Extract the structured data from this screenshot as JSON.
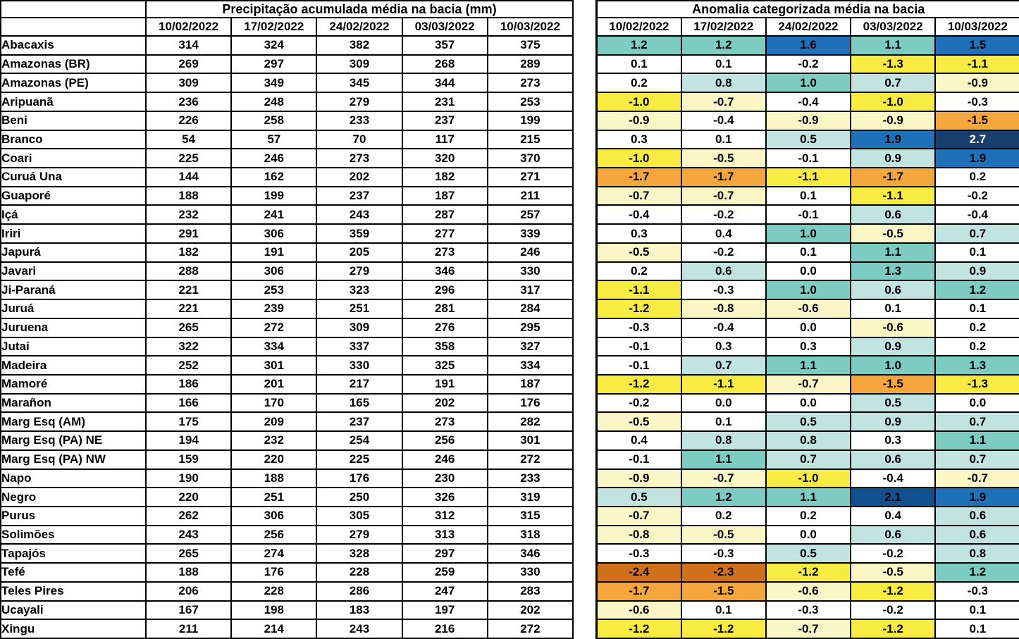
{
  "chart_data": {
    "type": "table",
    "left_table": {
      "title": "Precipitação acumulada média na bacia (mm)",
      "columns": [
        "10/02/2022",
        "17/02/2022",
        "24/02/2022",
        "03/03/2022",
        "10/03/2022"
      ]
    },
    "right_table": {
      "title": "Anomalia categorizada média na bacia",
      "columns": [
        "10/02/2022",
        "17/02/2022",
        "24/02/2022",
        "03/03/2022",
        "10/03/2022"
      ]
    },
    "rows": [
      {
        "name": "Abacaxis",
        "precip": [
          314,
          324,
          382,
          357,
          375
        ],
        "anomaly": [
          1.2,
          1.2,
          1.6,
          1.1,
          1.5
        ]
      },
      {
        "name": "Amazonas (BR)",
        "precip": [
          269,
          297,
          309,
          268,
          289
        ],
        "anomaly": [
          0.1,
          0.1,
          -0.2,
          -1.3,
          -1.1
        ]
      },
      {
        "name": "Amazonas (PE)",
        "precip": [
          309,
          349,
          345,
          344,
          273
        ],
        "anomaly": [
          0.2,
          0.8,
          1.0,
          0.7,
          -0.9
        ]
      },
      {
        "name": "Aripuanã",
        "precip": [
          236,
          248,
          279,
          231,
          253
        ],
        "anomaly": [
          -1.0,
          -0.7,
          -0.4,
          -1.0,
          -0.3
        ]
      },
      {
        "name": "Beni",
        "precip": [
          226,
          258,
          233,
          237,
          199
        ],
        "anomaly": [
          -0.9,
          -0.4,
          -0.9,
          -0.9,
          -1.5
        ]
      },
      {
        "name": "Branco",
        "precip": [
          54,
          57,
          70,
          117,
          215
        ],
        "anomaly": [
          0.3,
          0.1,
          0.5,
          1.9,
          2.7
        ]
      },
      {
        "name": "Coari",
        "precip": [
          225,
          246,
          273,
          320,
          370
        ],
        "anomaly": [
          -1.0,
          -0.5,
          -0.1,
          0.9,
          1.9
        ]
      },
      {
        "name": "Curuá Una",
        "precip": [
          144,
          162,
          202,
          182,
          271
        ],
        "anomaly": [
          -1.7,
          -1.7,
          -1.1,
          -1.7,
          0.2
        ]
      },
      {
        "name": "Guaporé",
        "precip": [
          188,
          199,
          237,
          187,
          211
        ],
        "anomaly": [
          -0.7,
          -0.7,
          0.1,
          -1.1,
          -0.2
        ]
      },
      {
        "name": "Içá",
        "precip": [
          232,
          241,
          243,
          287,
          257
        ],
        "anomaly": [
          -0.4,
          -0.2,
          -0.1,
          0.6,
          -0.4
        ]
      },
      {
        "name": "Iriri",
        "precip": [
          291,
          306,
          359,
          277,
          339
        ],
        "anomaly": [
          0.3,
          0.4,
          1.0,
          -0.5,
          0.7
        ]
      },
      {
        "name": "Japurá",
        "precip": [
          182,
          191,
          205,
          273,
          246
        ],
        "anomaly": [
          -0.5,
          -0.2,
          0.1,
          1.1,
          0.1
        ]
      },
      {
        "name": "Javari",
        "precip": [
          288,
          306,
          279,
          346,
          330
        ],
        "anomaly": [
          0.2,
          0.6,
          0.0,
          1.3,
          0.9
        ]
      },
      {
        "name": "Ji-Paraná",
        "precip": [
          221,
          253,
          323,
          296,
          317
        ],
        "anomaly": [
          -1.1,
          -0.3,
          1.0,
          0.6,
          1.2
        ]
      },
      {
        "name": "Juruá",
        "precip": [
          221,
          239,
          251,
          281,
          284
        ],
        "anomaly": [
          -1.2,
          -0.8,
          -0.6,
          0.1,
          0.1
        ]
      },
      {
        "name": "Juruena",
        "precip": [
          265,
          272,
          309,
          276,
          295
        ],
        "anomaly": [
          -0.3,
          -0.4,
          0.0,
          -0.6,
          0.2
        ]
      },
      {
        "name": "Jutaí",
        "precip": [
          322,
          334,
          337,
          358,
          327
        ],
        "anomaly": [
          -0.1,
          0.3,
          0.3,
          0.9,
          0.2
        ]
      },
      {
        "name": "Madeira",
        "precip": [
          252,
          301,
          330,
          325,
          334
        ],
        "anomaly": [
          -0.1,
          0.7,
          1.1,
          1.0,
          1.3
        ]
      },
      {
        "name": "Mamoré",
        "precip": [
          186,
          201,
          217,
          191,
          187
        ],
        "anomaly": [
          -1.2,
          -1.1,
          -0.7,
          -1.5,
          -1.3
        ]
      },
      {
        "name": "Marañon",
        "precip": [
          166,
          170,
          165,
          202,
          176
        ],
        "anomaly": [
          -0.2,
          0.0,
          0.0,
          0.5,
          0.0
        ]
      },
      {
        "name": "Marg Esq (AM)",
        "precip": [
          175,
          209,
          237,
          273,
          282
        ],
        "anomaly": [
          -0.5,
          0.1,
          0.5,
          0.9,
          0.7
        ]
      },
      {
        "name": "Marg Esq (PA) NE",
        "precip": [
          194,
          232,
          254,
          256,
          301
        ],
        "anomaly": [
          0.4,
          0.8,
          0.8,
          0.3,
          1.1
        ]
      },
      {
        "name": "Marg Esq (PA) NW",
        "precip": [
          159,
          220,
          225,
          246,
          272
        ],
        "anomaly": [
          -0.1,
          1.1,
          0.7,
          0.6,
          0.7
        ]
      },
      {
        "name": "Napo",
        "precip": [
          190,
          188,
          176,
          230,
          233
        ],
        "anomaly": [
          -0.9,
          -0.7,
          -1.0,
          -0.4,
          -0.7
        ]
      },
      {
        "name": "Negro",
        "precip": [
          220,
          251,
          250,
          326,
          319
        ],
        "anomaly": [
          0.5,
          1.2,
          1.1,
          2.1,
          1.9
        ]
      },
      {
        "name": "Purus",
        "precip": [
          262,
          306,
          305,
          312,
          315
        ],
        "anomaly": [
          -0.7,
          0.2,
          0.2,
          0.4,
          0.6
        ]
      },
      {
        "name": "Solimões",
        "precip": [
          243,
          256,
          279,
          313,
          318
        ],
        "anomaly": [
          -0.8,
          -0.5,
          0.0,
          0.6,
          0.6
        ]
      },
      {
        "name": "Tapajós",
        "precip": [
          265,
          274,
          328,
          297,
          346
        ],
        "anomaly": [
          -0.3,
          -0.3,
          0.5,
          -0.2,
          0.8
        ]
      },
      {
        "name": "Tefé",
        "precip": [
          188,
          176,
          228,
          259,
          330
        ],
        "anomaly": [
          -2.4,
          -2.3,
          -1.2,
          -0.5,
          1.2
        ]
      },
      {
        "name": "Teles Pires",
        "precip": [
          206,
          228,
          286,
          247,
          283
        ],
        "anomaly": [
          -1.7,
          -1.5,
          -0.6,
          -1.2,
          -0.3
        ]
      },
      {
        "name": "Ucayali",
        "precip": [
          167,
          198,
          183,
          197,
          202
        ],
        "anomaly": [
          -0.6,
          0.1,
          -0.3,
          -0.2,
          0.1
        ]
      },
      {
        "name": "Xingu",
        "precip": [
          211,
          214,
          243,
          216,
          272
        ],
        "anomaly": [
          -1.2,
          -1.2,
          -0.7,
          -1.2,
          0.1
        ]
      }
    ],
    "anomaly_scale": [
      {
        "min": 2.5,
        "color": "#173F6D",
        "text": "#FFFFFF",
        "label": "extremely-wet"
      },
      {
        "min": 2.0,
        "color": "#11508E",
        "text": "#000000",
        "label": "severely-wet"
      },
      {
        "min": 1.5,
        "color": "#1E70B8",
        "text": "#000000",
        "label": "very-wet"
      },
      {
        "min": 1.0,
        "color": "#7CCCC2",
        "text": "#000000",
        "label": "moderately-wet"
      },
      {
        "min": 0.5,
        "color": "#C2E4E0",
        "text": "#000000",
        "label": "slightly-wet"
      },
      {
        "min": -0.45,
        "color": "#FFFFFF",
        "text": "#000000",
        "label": "normal"
      },
      {
        "min": -0.95,
        "color": "#FAF6C6",
        "text": "#000000",
        "label": "slightly-dry"
      },
      {
        "min": -1.45,
        "color": "#F8EB42",
        "text": "#000000",
        "label": "moderately-dry"
      },
      {
        "min": -1.95,
        "color": "#F5A73E",
        "text": "#000000",
        "label": "severely-dry"
      },
      {
        "min": -99,
        "color": "#D2711C",
        "text": "#000000",
        "label": "extremely-dry"
      }
    ]
  }
}
